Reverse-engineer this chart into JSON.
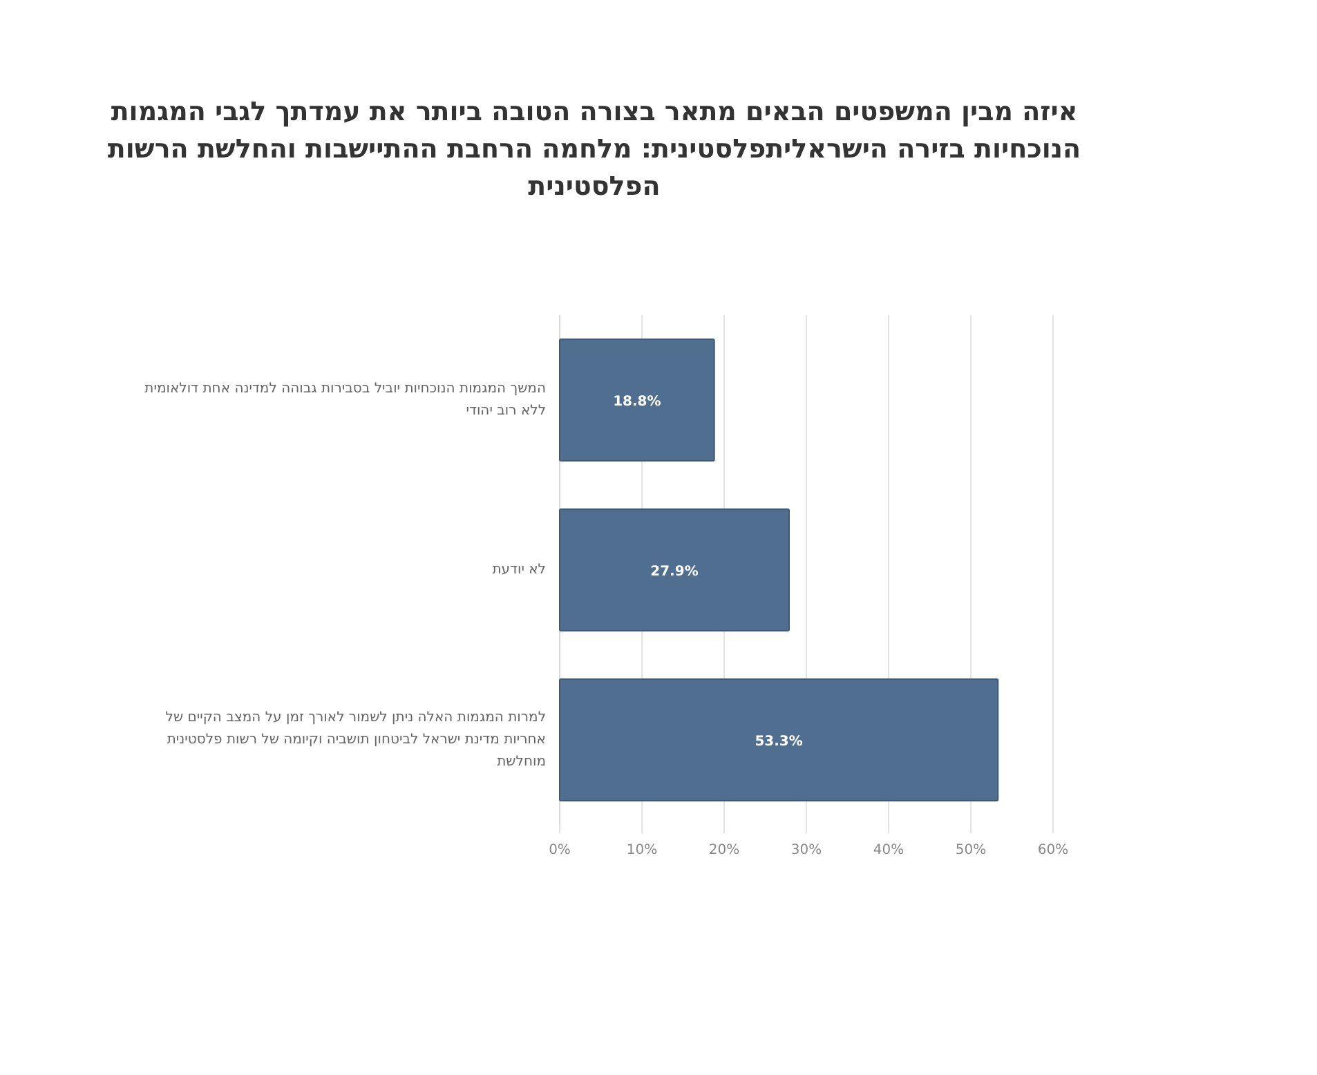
{
  "chart_data": {
    "type": "bar",
    "orientation": "horizontal",
    "title": "איזה מבין המשפטים הבאים מתאר בצורה הטובה ביותר את עמדתך לגבי המגמות הנוכחיות בזירה הישראליתפלסטינית: מלחמה הרחבת ההתיישבות והחלשת הרשות הפלסטינית",
    "categories": [
      "המשך המגמות הנוכחיות יוביל בסבירות גבוהה למדינה אחת דולאומית ללא רוב יהודי",
      "לא יודעת",
      "למרות המגמות האלה ניתן לשמור לאורך זמן על המצב הקיים של אחריות מדינת ישראל לביטחון תושביה וקיומה של רשות פלסטינית מוחלשת"
    ],
    "values": [
      18.8,
      27.9,
      53.3
    ],
    "value_labels": [
      "18.8%",
      "27.9%",
      "53.3%"
    ],
    "color": "#506e8f",
    "xlim": [
      0,
      60
    ],
    "xticks": [
      {
        "value": 0,
        "label": "0%"
      },
      {
        "value": 10,
        "label": "10%"
      },
      {
        "value": 20,
        "label": "20%"
      },
      {
        "value": 30,
        "label": "30%"
      },
      {
        "value": 40,
        "label": "40%"
      },
      {
        "value": 50,
        "label": "50%"
      },
      {
        "value": 60,
        "label": "60%"
      }
    ],
    "grid": "x"
  }
}
